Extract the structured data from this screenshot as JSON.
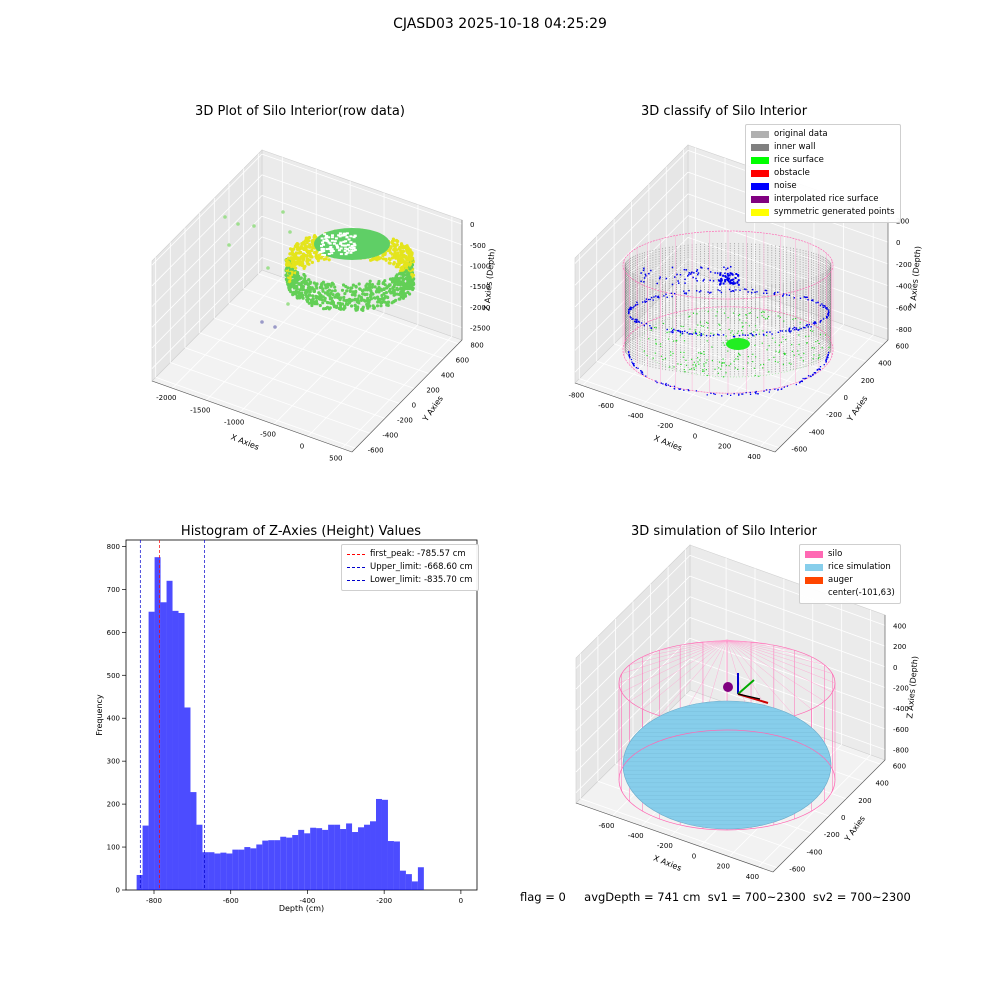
{
  "page": {
    "title": "CJASD03 2025-10-18 04:25:29"
  },
  "status_line": {
    "flag": "flag = 0",
    "avg_depth": "avgDepth = 741 cm",
    "sv1": "sv1 = 700~2300",
    "sv2": "sv2 = 700~2300"
  },
  "chart_data": [
    {
      "type": "scatter",
      "projection": "3d",
      "title": "3D Plot of Silo Interior(row data)",
      "xlabel": "X Axies",
      "ylabel": "Y Axies",
      "zlabel": "Z Axies (Depth)",
      "xticks": [
        -2000,
        -1500,
        -1000,
        -500,
        0,
        500
      ],
      "yticks": [
        -600,
        -400,
        -200,
        0,
        200,
        400,
        600,
        800
      ],
      "zticks": [
        0,
        -500,
        -1000,
        -1500,
        -2000,
        -2500
      ],
      "xlim": [
        -2300,
        650
      ],
      "ylim": [
        -650,
        850
      ],
      "zlim": [
        -2800,
        100
      ],
      "colormap": "viridis (green to yellow)",
      "colors": {
        "low": "#3cc45d",
        "high": "#e8e81a"
      },
      "description_points": "dense elliptical ring of points centered near x=-200, y=100"
    },
    {
      "type": "scatter",
      "projection": "3d",
      "title": "3D classify of Silo Interior",
      "xlabel": "X Axies",
      "ylabel": "Y Axies",
      "zlabel": "Z Axies (Depth)",
      "xticks": [
        -800,
        -600,
        -400,
        -200,
        0,
        200,
        400
      ],
      "yticks": [
        -600,
        -400,
        -200,
        0,
        200,
        400,
        600
      ],
      "zticks": [
        200,
        0,
        -200,
        -400,
        -600,
        -800
      ],
      "xlim": [
        -850,
        500
      ],
      "ylim": [
        -650,
        650
      ],
      "zlim": [
        -900,
        250
      ],
      "legend_position": "top-right",
      "legend": [
        {
          "label": "original data",
          "color": "#b0b0b0"
        },
        {
          "label": "inner wall",
          "color": "#808080"
        },
        {
          "label": "rice surface",
          "color": "#00ff00"
        },
        {
          "label": "obstacle",
          "color": "#ff0000"
        },
        {
          "label": "noise",
          "color": "#0000ff"
        },
        {
          "label": "interpolated rice surface",
          "color": "#800080"
        },
        {
          "label": "symmetric generated points",
          "color": "#ffff00"
        }
      ]
    },
    {
      "type": "bar",
      "title": "Histogram of Z-Axies (Height) Values",
      "xlabel": "Depth (cm)",
      "ylabel": "Frequency",
      "xlim": [
        -873,
        42
      ],
      "ylim": [
        0,
        815
      ],
      "xticks": [
        -800,
        -600,
        -400,
        -200,
        0
      ],
      "yticks": [
        0,
        100,
        200,
        300,
        400,
        500,
        600,
        700,
        800
      ],
      "bar_color": "#0000ff",
      "bin_start": -845.3,
      "bin_width": 15.6,
      "values": [
        35,
        150,
        648,
        775,
        670,
        720,
        650,
        645,
        425,
        228,
        152,
        88,
        88,
        85,
        87,
        85,
        94,
        94,
        100,
        97,
        106,
        115,
        116,
        116,
        124,
        122,
        128,
        140,
        132,
        145,
        144,
        140,
        152,
        152,
        142,
        155,
        135,
        146,
        152,
        160,
        212,
        210,
        114,
        113,
        45,
        37,
        20,
        53
      ],
      "vlines": [
        {
          "label": "first_peak: -785.57 cm",
          "value": -785.57,
          "color": "#ff0000"
        },
        {
          "label": "Upper_limit: -668.60 cm",
          "value": -668.6,
          "color": "#0000cc"
        },
        {
          "label": "Lower_limit: -835.70 cm",
          "value": -835.7,
          "color": "#0000cc"
        }
      ],
      "legend_position": "top-right"
    },
    {
      "type": "scatter",
      "projection": "3d",
      "title": "3D simulation of Silo Interior",
      "xlabel": "X Axies",
      "ylabel": "Y Axies",
      "zlabel": "Z Axies (Depth)",
      "xticks": [
        -600,
        -400,
        -200,
        0,
        200,
        400
      ],
      "yticks": [
        -600,
        -400,
        -200,
        0,
        200,
        400,
        600
      ],
      "zticks": [
        400,
        200,
        0,
        -200,
        -400,
        -600,
        -800
      ],
      "xlim": [
        -850,
        500
      ],
      "ylim": [
        -650,
        650
      ],
      "zlim": [
        -900,
        500
      ],
      "legend_position": "top-right",
      "legend": [
        {
          "label": "silo",
          "color": "#ff69b4"
        },
        {
          "label": "rice simulation",
          "color": "#87ceeb"
        },
        {
          "label": "auger",
          "color": "#ff4500"
        },
        {
          "label": "center(-101,63)",
          "color": ""
        }
      ]
    }
  ]
}
